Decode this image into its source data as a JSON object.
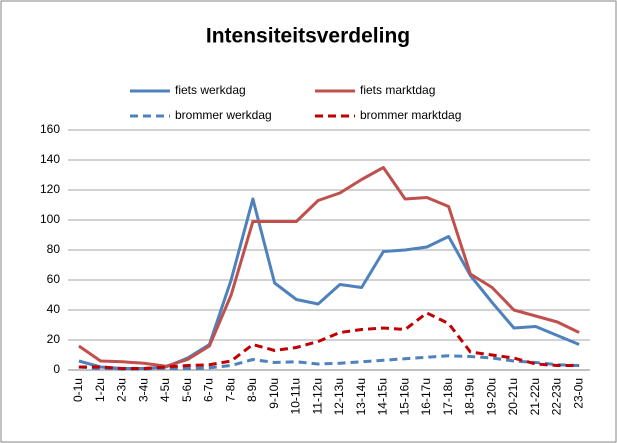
{
  "chart_data": {
    "type": "line",
    "title": "Intensiteitsverdeling",
    "categories": [
      "0-1u",
      "1-2u",
      "2-3u",
      "3-4u",
      "4-5u",
      "5-6u",
      "6-7u",
      "7-8u",
      "8-9u",
      "9-10u",
      "10-11u",
      "11-12u",
      "12-13u",
      "13-14u",
      "14-15u",
      "15-16u",
      "16-17u",
      "17-18u",
      "18-19u",
      "19-20u",
      "20-21u",
      "21-22u",
      "22-23u",
      "23-0u"
    ],
    "series": [
      {
        "name": "fiets werkdag",
        "color": "#4f81bd",
        "dash": false,
        "values": [
          6,
          2,
          1,
          1,
          2,
          8,
          17,
          60,
          114,
          58,
          47,
          44,
          57,
          55,
          79,
          80,
          82,
          89,
          63,
          45,
          28,
          29,
          23,
          17
        ]
      },
      {
        "name": "fiets marktdag",
        "color": "#c0504d",
        "dash": false,
        "values": [
          16,
          6,
          5.5,
          4.5,
          2.5,
          7,
          16,
          50,
          99,
          99,
          99,
          113,
          118,
          127,
          135,
          114,
          115,
          109,
          64,
          55,
          40,
          36,
          32,
          25
        ]
      },
      {
        "name": "brommer werkdag",
        "color": "#4f81bd",
        "dash": true,
        "values": [
          2,
          1,
          0.5,
          0.5,
          1,
          1,
          1.5,
          3,
          7,
          5,
          5.5,
          4,
          4.5,
          5.5,
          6.5,
          7.5,
          8.5,
          9.5,
          9,
          8,
          6,
          5,
          3.5,
          3
        ]
      },
      {
        "name": "brommer marktdag",
        "color": "#c00000",
        "dash": true,
        "values": [
          2,
          2,
          1,
          1,
          2,
          3,
          3.5,
          6,
          17,
          13,
          15,
          19,
          25,
          27,
          28,
          27,
          38,
          31,
          12,
          10,
          8,
          4,
          3,
          3
        ]
      }
    ],
    "ylim": [
      0,
      160
    ],
    "yticks": [
      0,
      20,
      40,
      60,
      80,
      100,
      120,
      140,
      160
    ],
    "grid": true,
    "legend": "top"
  }
}
